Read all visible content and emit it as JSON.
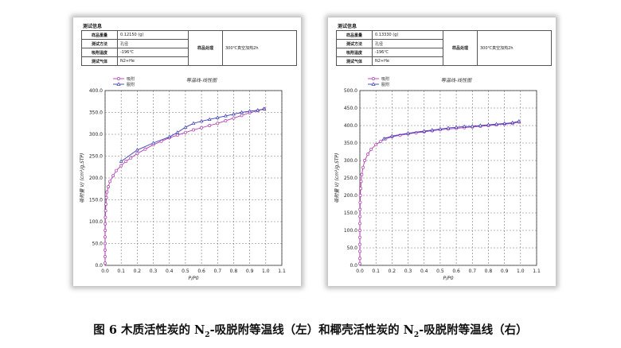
{
  "caption": {
    "prefix": "图 6  木质活性炭的 N",
    "sub1": "2",
    "middle": "-吸脱附等温线（左）和椰壳活性炭的 N",
    "sub2": "2",
    "suffix": "-吸脱附等温线（右）"
  },
  "panels": [
    {
      "info": {
        "title": "测试信息",
        "rows": [
          {
            "label": "样品重量",
            "value": "0.12150 (g)"
          },
          {
            "label": "测试方法",
            "value": "孔径"
          },
          {
            "label": "吸附温度",
            "value": "-196℃"
          },
          {
            "label": "测试气体",
            "value": "N2+He"
          }
        ],
        "treatment_label": "样品处理",
        "treatment_value": "300℃真空加热2h"
      }
    },
    {
      "info": {
        "title": "测试信息",
        "rows": [
          {
            "label": "样品重量",
            "value": "0.13330 (g)"
          },
          {
            "label": "测试方法",
            "value": "孔径"
          },
          {
            "label": "吸附温度",
            "value": "-196℃"
          },
          {
            "label": "测试气体",
            "value": "N2+He"
          }
        ],
        "treatment_label": "样品处理",
        "treatment_value": "300℃真空加热2h"
      }
    }
  ],
  "chart_data": [
    {
      "type": "line",
      "title": "等温线-线性图",
      "xlabel": "P/P0",
      "ylabel": "吸附量 V/ (cm³/g,STP)",
      "xlim": [
        0.0,
        1.1
      ],
      "ylim": [
        0.0,
        400.0
      ],
      "x_ticks": [
        "0.0",
        "0.1",
        "0.2",
        "0.3",
        "0.4",
        "0.5",
        "0.6",
        "0.7",
        "0.8",
        "0.9",
        "1.0",
        "1.1"
      ],
      "y_ticks": [
        "0.0",
        "50.0",
        "100.0",
        "150.0",
        "200.0",
        "250.0",
        "300.0",
        "350.0",
        "400.0"
      ],
      "grid": true,
      "legend_position": "top-left",
      "series_colors": [
        "#b03cb0",
        "#3c3cb4"
      ],
      "series": [
        {
          "name": "吸附",
          "marker": "circle",
          "x": [
            0.0,
            0.0,
            0.0,
            0.0,
            0.0,
            0.001,
            0.001,
            0.002,
            0.003,
            0.005,
            0.008,
            0.012,
            0.02,
            0.03,
            0.05,
            0.07,
            0.1,
            0.13,
            0.16,
            0.2,
            0.25,
            0.3,
            0.35,
            0.4,
            0.45,
            0.5,
            0.55,
            0.6,
            0.65,
            0.7,
            0.75,
            0.8,
            0.85,
            0.9,
            0.95,
            0.99
          ],
          "y": [
            5,
            20,
            35,
            50,
            65,
            80,
            95,
            110,
            125,
            140,
            155,
            168,
            180,
            192,
            205,
            217,
            228,
            238,
            246,
            256,
            266,
            276,
            284,
            292,
            298,
            304,
            310,
            315,
            320,
            325,
            331,
            337,
            343,
            349,
            354,
            358
          ]
        },
        {
          "name": "脱附",
          "marker": "triangle",
          "x": [
            0.99,
            0.95,
            0.9,
            0.85,
            0.8,
            0.75,
            0.7,
            0.65,
            0.6,
            0.55,
            0.5,
            0.45,
            0.4,
            0.3,
            0.2,
            0.1
          ],
          "y": [
            358,
            355,
            353,
            350,
            346,
            342,
            338,
            334,
            330,
            325,
            316,
            304,
            294,
            280,
            264,
            238
          ]
        }
      ]
    },
    {
      "type": "line",
      "title": "等温线-线性图",
      "xlabel": "P/P0",
      "ylabel": "吸附量 V/ (cm³/g,STP)",
      "xlim": [
        0.0,
        1.1
      ],
      "ylim": [
        0.0,
        500.0
      ],
      "x_ticks": [
        "0.0",
        "0.1",
        "0.2",
        "0.3",
        "0.4",
        "0.5",
        "0.6",
        "0.7",
        "0.8",
        "0.9",
        "1.0",
        "1.1"
      ],
      "y_ticks": [
        "0.0",
        "50.0",
        "100.0",
        "150.0",
        "200.0",
        "250.0",
        "300.0",
        "350.0",
        "400.0",
        "450.0",
        "500.0"
      ],
      "grid": true,
      "legend_position": "top-left",
      "series_colors": [
        "#b03cb0",
        "#3c3cb4"
      ],
      "series": [
        {
          "name": "吸附",
          "marker": "circle",
          "x": [
            0.0,
            0.0,
            0.0,
            0.0,
            0.0,
            0.0,
            0.0,
            0.001,
            0.001,
            0.002,
            0.003,
            0.005,
            0.008,
            0.012,
            0.02,
            0.03,
            0.05,
            0.07,
            0.1,
            0.13,
            0.16,
            0.2,
            0.25,
            0.3,
            0.35,
            0.4,
            0.45,
            0.5,
            0.55,
            0.6,
            0.65,
            0.7,
            0.75,
            0.8,
            0.85,
            0.9,
            0.95,
            0.99
          ],
          "y": [
            5,
            20,
            40,
            60,
            80,
            100,
            120,
            140,
            160,
            180,
            200,
            220,
            240,
            260,
            280,
            300,
            318,
            332,
            345,
            355,
            362,
            368,
            372,
            376,
            379,
            382,
            385,
            388,
            390,
            392,
            394,
            396,
            398,
            400,
            402,
            404,
            406,
            410
          ]
        },
        {
          "name": "脱附",
          "marker": "triangle",
          "x": [
            0.99,
            0.95,
            0.9,
            0.85,
            0.8,
            0.75,
            0.7,
            0.65,
            0.6,
            0.55,
            0.5,
            0.45,
            0.4,
            0.3,
            0.2,
            0.15
          ],
          "y": [
            412,
            408,
            406,
            404,
            402,
            400,
            398,
            397,
            395,
            393,
            390,
            387,
            384,
            378,
            370,
            362
          ]
        }
      ]
    }
  ]
}
